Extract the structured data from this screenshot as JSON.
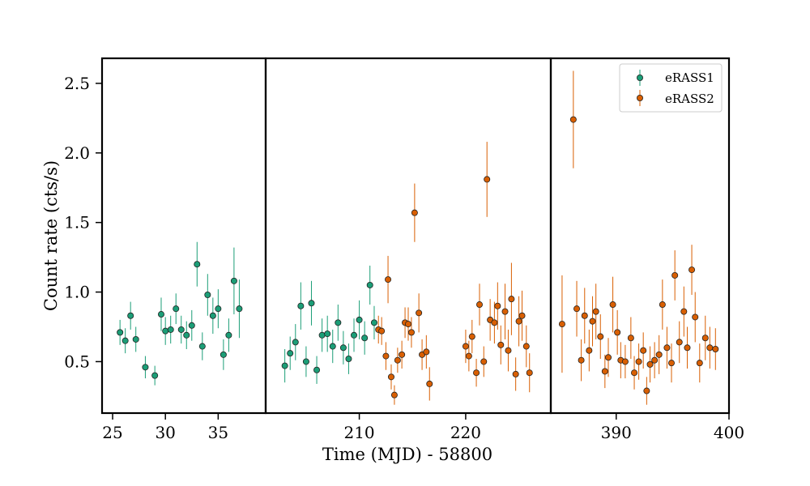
{
  "chart_data": {
    "type": "scatter",
    "title": "",
    "xlabel": "Time (MJD) - 58800",
    "ylabel": "Count rate (cts/s)",
    "ylim": [
      0.13,
      2.68
    ],
    "yticks": [
      0.5,
      1.0,
      1.5,
      2.0,
      2.5
    ],
    "ytick_labels": [
      "0.5",
      "1.0",
      "1.5",
      "2.0",
      "2.5"
    ],
    "grid": false,
    "legend_position": "top-right",
    "colors": {
      "eRASS1": "#1b9e77",
      "eRASS2": "#d95f02"
    },
    "panels": [
      {
        "xlim": [
          24,
          39.5
        ],
        "xticks": [
          25,
          30,
          35
        ],
        "xtick_labels": [
          "25",
          "30",
          "35"
        ]
      },
      {
        "xlim": [
          201.2,
          228
        ],
        "xticks": [
          210,
          220
        ],
        "xtick_labels": [
          "210",
          "220"
        ]
      },
      {
        "xlim": [
          384.2,
          400
        ],
        "xticks": [
          390,
          400
        ],
        "xtick_labels": [
          "390",
          "400"
        ]
      }
    ],
    "series": [
      {
        "name": "eRASS1",
        "points": [
          [
            25.7,
            0.71,
            0.09
          ],
          [
            26.2,
            0.65,
            0.09
          ],
          [
            26.7,
            0.83,
            0.1
          ],
          [
            27.2,
            0.66,
            0.09
          ],
          [
            28.1,
            0.46,
            0.08
          ],
          [
            29.0,
            0.4,
            0.07
          ],
          [
            29.6,
            0.84,
            0.12
          ],
          [
            30.0,
            0.72,
            0.1
          ],
          [
            30.5,
            0.73,
            0.1
          ],
          [
            31.0,
            0.88,
            0.11
          ],
          [
            31.5,
            0.73,
            0.1
          ],
          [
            32.0,
            0.69,
            0.1
          ],
          [
            32.5,
            0.76,
            0.11
          ],
          [
            33.0,
            1.2,
            0.16
          ],
          [
            33.5,
            0.61,
            0.1
          ],
          [
            34.0,
            0.98,
            0.15
          ],
          [
            34.5,
            0.83,
            0.13
          ],
          [
            35.0,
            0.88,
            0.14
          ],
          [
            35.5,
            0.55,
            0.11
          ],
          [
            36.0,
            0.69,
            0.12
          ],
          [
            36.5,
            1.08,
            0.24
          ],
          [
            37.0,
            0.88,
            0.21
          ],
          [
            203.0,
            0.47,
            0.12
          ],
          [
            203.5,
            0.56,
            0.12
          ],
          [
            204.0,
            0.64,
            0.13
          ],
          [
            204.5,
            0.9,
            0.17
          ],
          [
            205.0,
            0.5,
            0.11
          ],
          [
            205.5,
            0.92,
            0.16
          ],
          [
            206.0,
            0.44,
            0.1
          ],
          [
            206.5,
            0.69,
            0.12
          ],
          [
            207.0,
            0.7,
            0.13
          ],
          [
            207.5,
            0.61,
            0.12
          ],
          [
            208.0,
            0.78,
            0.13
          ],
          [
            208.5,
            0.6,
            0.12
          ],
          [
            209.0,
            0.52,
            0.11
          ],
          [
            209.5,
            0.69,
            0.12
          ],
          [
            210.0,
            0.8,
            0.14
          ],
          [
            210.5,
            0.67,
            0.12
          ],
          [
            211.0,
            1.05,
            0.14
          ],
          [
            211.4,
            0.78,
            0.12
          ]
        ]
      },
      {
        "name": "eRASS2",
        "points": [
          [
            211.8,
            0.73,
            0.1
          ],
          [
            212.1,
            0.72,
            0.1
          ],
          [
            212.5,
            0.54,
            0.1
          ],
          [
            212.7,
            1.09,
            0.17
          ],
          [
            213.0,
            0.39,
            0.09
          ],
          [
            213.3,
            0.26,
            0.07
          ],
          [
            213.6,
            0.51,
            0.09
          ],
          [
            214.0,
            0.55,
            0.1
          ],
          [
            214.3,
            0.78,
            0.11
          ],
          [
            214.6,
            0.77,
            0.12
          ],
          [
            214.9,
            0.71,
            0.11
          ],
          [
            215.2,
            1.57,
            0.21
          ],
          [
            215.6,
            0.85,
            0.14
          ],
          [
            215.9,
            0.55,
            0.11
          ],
          [
            216.3,
            0.57,
            0.12
          ],
          [
            216.6,
            0.34,
            0.12
          ],
          [
            220.0,
            0.61,
            0.12
          ],
          [
            220.3,
            0.54,
            0.11
          ],
          [
            220.6,
            0.68,
            0.12
          ],
          [
            221.0,
            0.42,
            0.1
          ],
          [
            221.3,
            0.91,
            0.15
          ],
          [
            221.7,
            0.5,
            0.11
          ],
          [
            222.0,
            1.81,
            0.27
          ],
          [
            222.3,
            0.8,
            0.15
          ],
          [
            222.7,
            0.78,
            0.15
          ],
          [
            223.0,
            0.9,
            0.17
          ],
          [
            223.3,
            0.62,
            0.14
          ],
          [
            223.7,
            0.86,
            0.2
          ],
          [
            224.0,
            0.58,
            0.15
          ],
          [
            224.3,
            0.95,
            0.26
          ],
          [
            224.7,
            0.41,
            0.12
          ],
          [
            225.0,
            0.79,
            0.18
          ],
          [
            225.3,
            0.83,
            0.18
          ],
          [
            225.7,
            0.61,
            0.15
          ],
          [
            226.0,
            0.42,
            0.14
          ],
          [
            385.2,
            0.77,
            0.35
          ],
          [
            386.2,
            2.24,
            0.35
          ],
          [
            386.5,
            0.88,
            0.2
          ],
          [
            386.9,
            0.51,
            0.15
          ],
          [
            387.2,
            0.83,
            0.2
          ],
          [
            387.6,
            0.58,
            0.15
          ],
          [
            387.9,
            0.79,
            0.18
          ],
          [
            388.2,
            0.86,
            0.2
          ],
          [
            388.6,
            0.68,
            0.16
          ],
          [
            389.0,
            0.43,
            0.12
          ],
          [
            389.3,
            0.53,
            0.14
          ],
          [
            389.7,
            0.91,
            0.2
          ],
          [
            390.1,
            0.71,
            0.16
          ],
          [
            390.4,
            0.51,
            0.13
          ],
          [
            390.8,
            0.5,
            0.12
          ],
          [
            391.3,
            0.67,
            0.15
          ],
          [
            391.6,
            0.42,
            0.12
          ],
          [
            392.0,
            0.5,
            0.13
          ],
          [
            392.4,
            0.58,
            0.13
          ],
          [
            392.7,
            0.29,
            0.1
          ],
          [
            393.0,
            0.48,
            0.13
          ],
          [
            393.4,
            0.51,
            0.13
          ],
          [
            393.8,
            0.55,
            0.14
          ],
          [
            394.1,
            0.91,
            0.18
          ],
          [
            394.5,
            0.6,
            0.15
          ],
          [
            394.9,
            0.49,
            0.14
          ],
          [
            395.2,
            1.12,
            0.18
          ],
          [
            395.6,
            0.64,
            0.15
          ],
          [
            396.0,
            0.86,
            0.18
          ],
          [
            396.3,
            0.6,
            0.15
          ],
          [
            396.7,
            1.16,
            0.18
          ],
          [
            397.0,
            0.82,
            0.18
          ],
          [
            397.4,
            0.49,
            0.14
          ],
          [
            397.9,
            0.67,
            0.16
          ],
          [
            398.3,
            0.6,
            0.15
          ],
          [
            398.8,
            0.59,
            0.15
          ]
        ]
      }
    ]
  }
}
